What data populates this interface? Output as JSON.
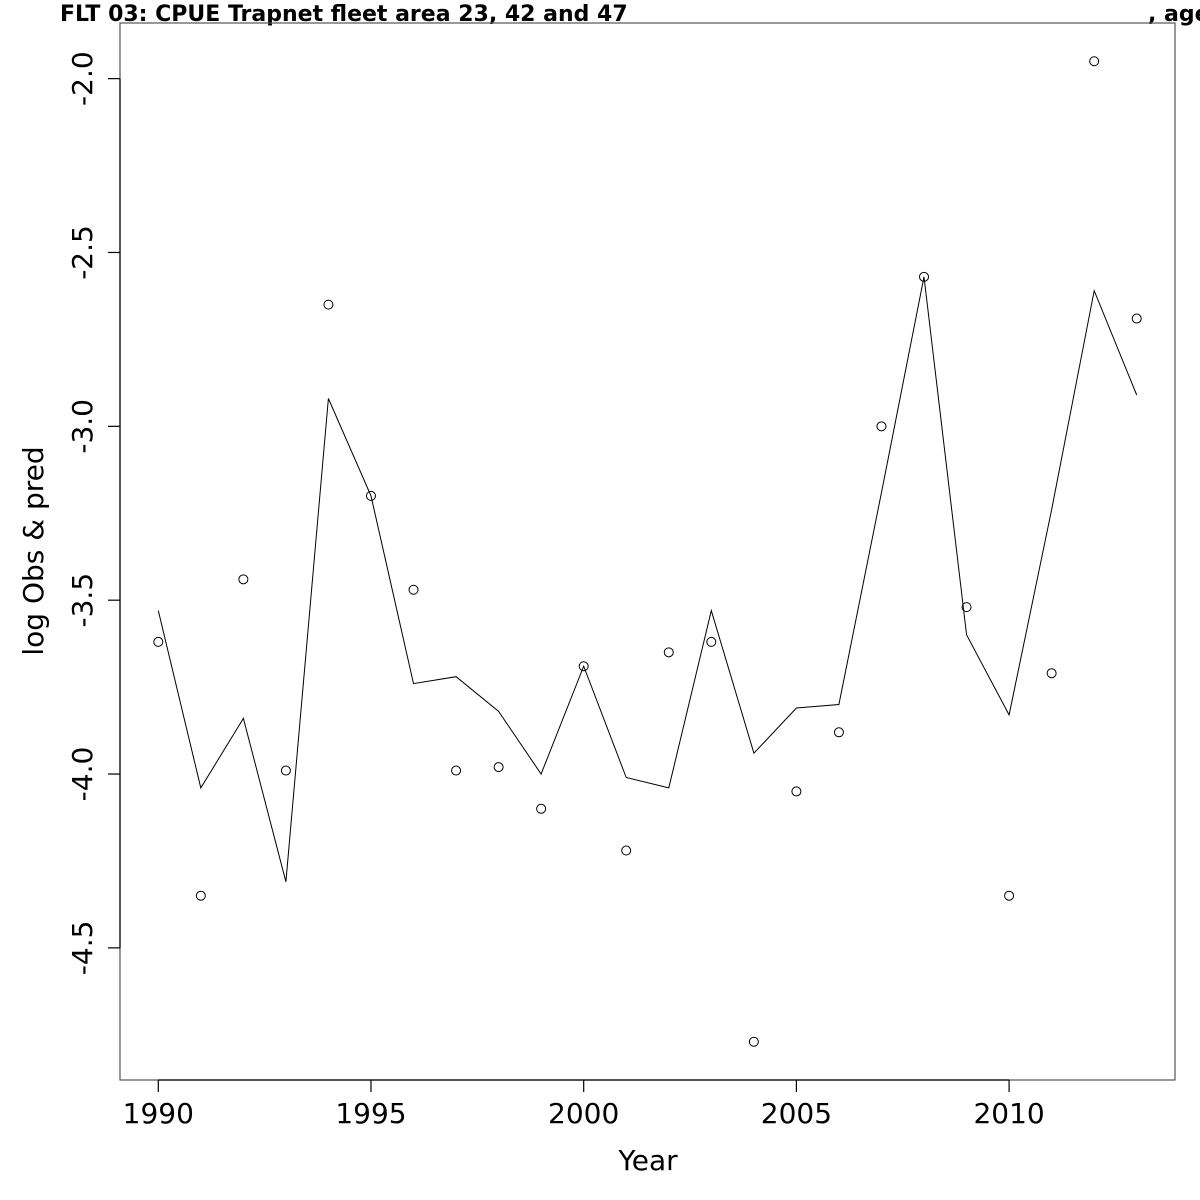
{
  "title_left": "FLT 03: CPUE Trapnet fleet area 23, 42 and 47",
  "title_right": ", age",
  "chart_data": {
    "type": "line",
    "title": "FLT 03: CPUE Trapnet fleet area 23, 42 and 47 , age",
    "xlabel": "Year",
    "ylabel": "log Obs & pred",
    "xlim": [
      1989.1,
      2013.9
    ],
    "ylim": [
      -4.88,
      -1.84
    ],
    "x_ticks": [
      1990,
      1995,
      2000,
      2005,
      2010
    ],
    "y_ticks": [
      -2.0,
      -2.5,
      -3.0,
      -3.5,
      -4.0,
      -4.5
    ],
    "y_tick_labels": [
      "-2.0",
      "-2.5",
      "-3.0",
      "-3.5",
      "-4.0",
      "-4.5"
    ],
    "grid": false,
    "x": [
      1990,
      1991,
      1992,
      1993,
      1994,
      1995,
      1996,
      1997,
      1998,
      1999,
      2000,
      2001,
      2002,
      2003,
      2004,
      2005,
      2006,
      2007,
      2008,
      2009,
      2010,
      2011,
      2012,
      2013
    ],
    "series": [
      {
        "role": "observed",
        "style": "points",
        "values": [
          -3.62,
          -4.35,
          -3.44,
          -3.99,
          -2.65,
          -3.2,
          -3.47,
          -3.99,
          -3.98,
          -4.1,
          -3.69,
          -4.22,
          -3.65,
          -3.62,
          -4.77,
          -4.05,
          -3.88,
          -3.0,
          -2.57,
          -3.52,
          -4.35,
          -3.71,
          -1.95,
          -2.69
        ]
      },
      {
        "role": "predicted",
        "style": "line",
        "values": [
          -3.53,
          -4.04,
          -3.84,
          -4.31,
          -2.92,
          -3.2,
          -3.74,
          -3.72,
          -3.82,
          -4.0,
          -3.69,
          -4.01,
          -4.04,
          -3.53,
          -3.94,
          -3.81,
          -3.8,
          -3.19,
          -2.57,
          -3.6,
          -3.83,
          -3.24,
          -2.61,
          -2.91
        ]
      }
    ]
  }
}
